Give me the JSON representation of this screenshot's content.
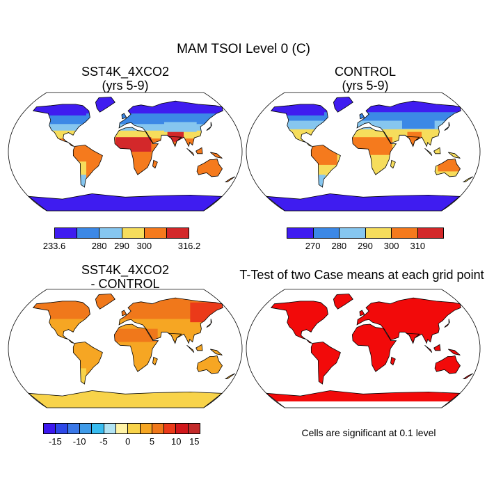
{
  "title": "MAM TSOI Level 0 (C)",
  "panels": {
    "tl": {
      "title_line1": "SST4K_4XCO2",
      "title_line2": "(yrs 5-9)"
    },
    "tr": {
      "title_line1": "CONTROL",
      "title_line2": "(yrs 5-9)"
    },
    "bl": {
      "title_line1": "SST4K_4XCO2",
      "title_line2": "- CONTROL"
    },
    "br": {
      "title_line1": "T-Test of two Case means at each grid point"
    }
  },
  "colorbar1": {
    "colors": [
      "#3f1cf0",
      "#3c88e6",
      "#86c6ef",
      "#f6dd5c",
      "#f57a1d",
      "#d3282a"
    ],
    "ticks": [
      "233.6",
      "280",
      "290",
      "300",
      "316.2"
    ]
  },
  "colorbar2": {
    "colors": [
      "#3f1cf0",
      "#3c88e6",
      "#86c6ef",
      "#f6dd5c",
      "#f57a1d",
      "#d3282a"
    ],
    "ticks": [
      "270",
      "280",
      "290",
      "300",
      "310"
    ]
  },
  "colorbar3": {
    "colors": [
      "#3d18ef",
      "#2d48e8",
      "#3a78e8",
      "#3f9be9",
      "#38bcf0",
      "#b1e3f3",
      "#fff3a6",
      "#f8d34a",
      "#f6a623",
      "#f0781b",
      "#eb3a19",
      "#d1171b",
      "#c32a2a"
    ],
    "ticks": [
      "-15",
      "-10",
      "-5",
      "0",
      "5",
      "10",
      "15"
    ]
  },
  "note": "Cells are significant at 0.1 level",
  "colors": {
    "ocean": "#ffffff",
    "coast": "#000000",
    "ttest_red": "#f20a0a"
  }
}
